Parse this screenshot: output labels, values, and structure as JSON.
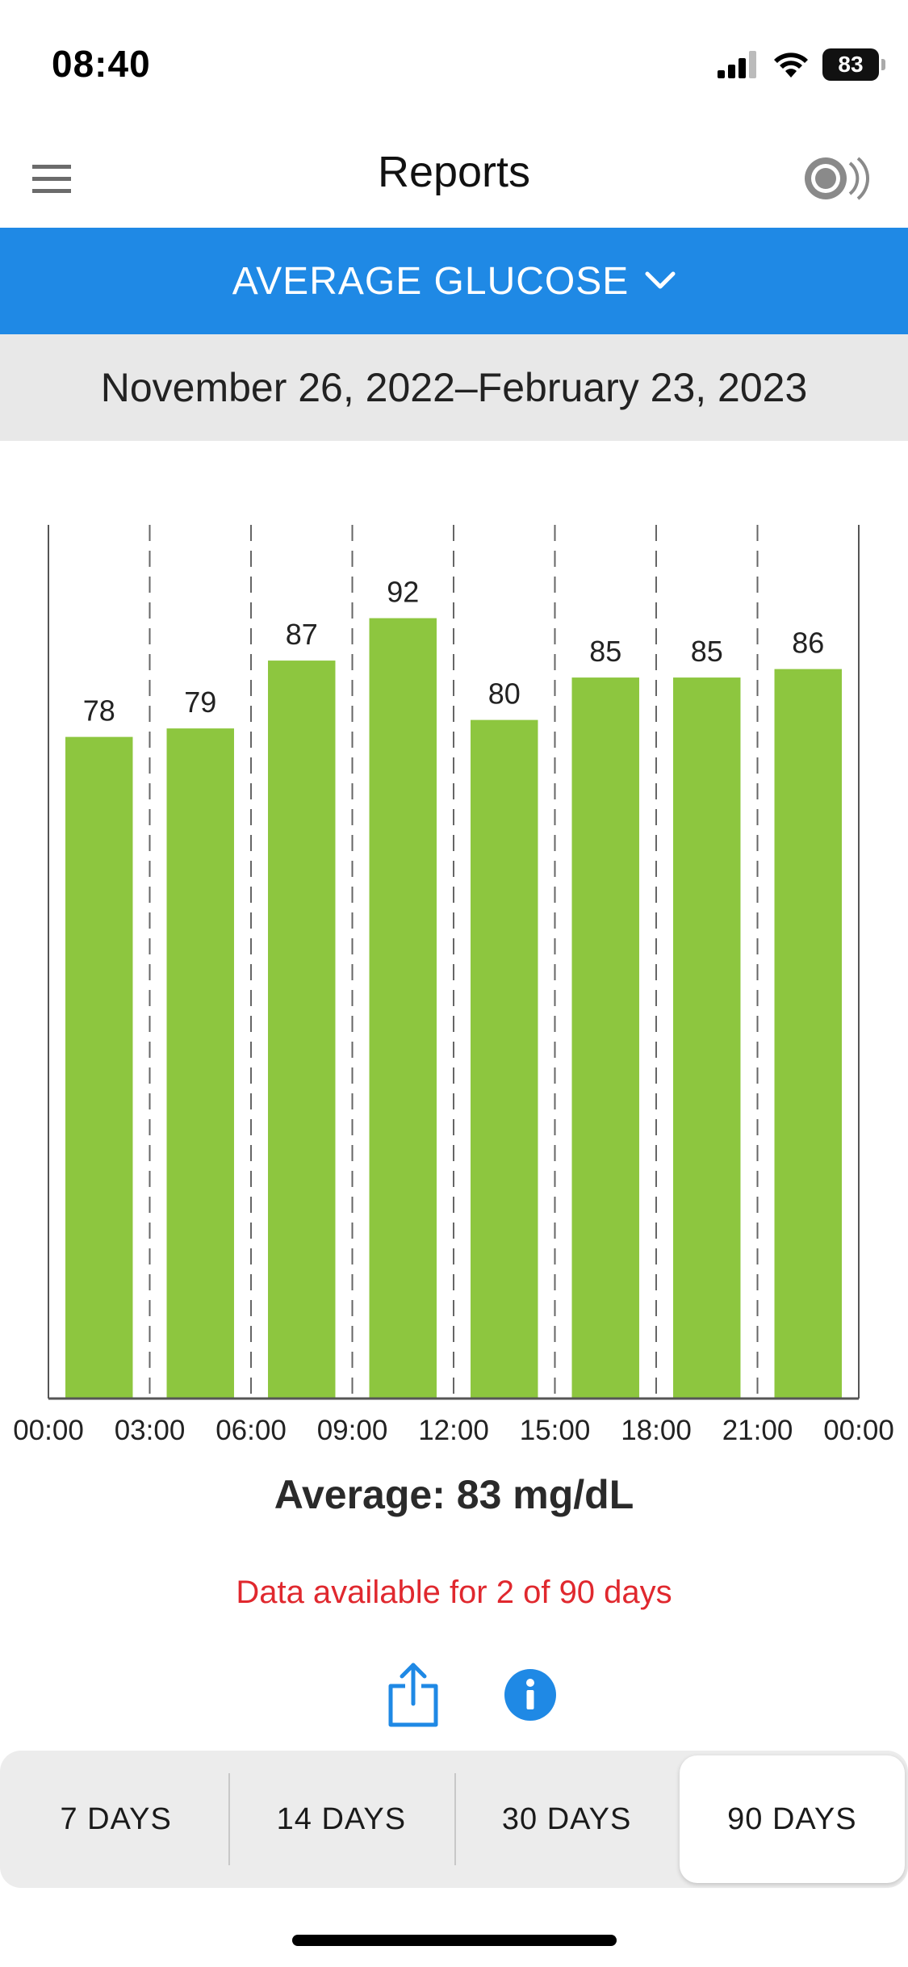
{
  "status_bar": {
    "time": "08:40",
    "battery": "83",
    "signal_icon": "cellular-signal-icon",
    "wifi_icon": "wifi-icon",
    "battery_icon": "battery-icon"
  },
  "nav": {
    "title": "Reports",
    "menu_icon": "hamburger-menu-icon",
    "sensor_icon": "sensor-scan-icon"
  },
  "report_selector": {
    "label": "AVERAGE GLUCOSE",
    "icon": "chevron-down-icon"
  },
  "date_range": "November 26, 2022–February 23, 2023",
  "chart_data": {
    "type": "bar",
    "title": "",
    "xlabel": "",
    "ylabel": "",
    "categories": [
      "00:00–03:00",
      "03:00–06:00",
      "06:00–09:00",
      "09:00–12:00",
      "12:00–15:00",
      "15:00–18:00",
      "18:00–21:00",
      "21:00–00:00"
    ],
    "values": [
      78,
      79,
      87,
      92,
      80,
      85,
      85,
      86
    ],
    "value_labels": [
      "78",
      "79",
      "87",
      "92",
      "80",
      "85",
      "85",
      "86"
    ],
    "x_tick_labels": [
      "00:00",
      "03:00",
      "06:00",
      "09:00",
      "12:00",
      "15:00",
      "18:00",
      "21:00",
      "00:00"
    ],
    "ylim": [
      0,
      103
    ],
    "bar_color": "#8dc63f",
    "grid": "vertical dashed"
  },
  "summary": {
    "average": "Average: 83 mg/dL",
    "availability": "Data available for 2 of 90 days"
  },
  "actions": {
    "share_icon": "share-icon",
    "info_icon": "info-icon"
  },
  "ranges": [
    {
      "label": "7 DAYS",
      "selected": false
    },
    {
      "label": "14 DAYS",
      "selected": false
    },
    {
      "label": "30 DAYS",
      "selected": false
    },
    {
      "label": "90 DAYS",
      "selected": true
    }
  ],
  "colors": {
    "accent_blue": "#1f89e5",
    "bar_green": "#8dc63f",
    "warning_red": "#e0282e",
    "date_band": "#e8e8e8"
  }
}
